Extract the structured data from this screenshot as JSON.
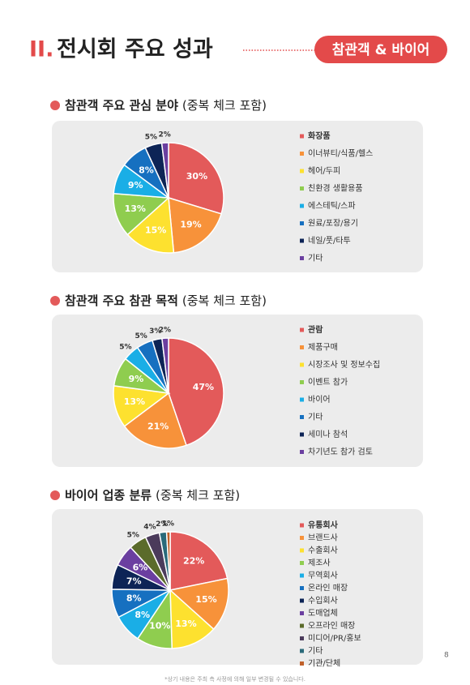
{
  "header": {
    "roman": "II.",
    "title": "전시회 주요 성과",
    "badge": "참관객 & 바이어"
  },
  "chart_data": [
    {
      "type": "pie",
      "title": "참관객 주요 관심 분야",
      "subtitle": "(중복 체크 포함)",
      "categories": [
        "화장품",
        "이너뷰티/식품/헬스",
        "헤어/두피",
        "친환경 생활용품",
        "에스테틱/스파",
        "원료/포장/용기",
        "네일/풋/타투",
        "기타"
      ],
      "values": [
        30,
        19,
        15,
        13,
        9,
        8,
        5,
        2
      ],
      "value_labels": [
        "30%",
        "19%",
        "15%",
        "13%",
        "9%",
        "8%",
        "5%",
        "2%"
      ],
      "colors": [
        "#e35a5a",
        "#f7923a",
        "#fde12f",
        "#8fcd4f",
        "#1aaee6",
        "#1670c0",
        "#0d2456",
        "#6b3fa0"
      ]
    },
    {
      "type": "pie",
      "title": "참관객 주요 참관 목적",
      "subtitle": "(중복 체크 포함)",
      "categories": [
        "관람",
        "제품구매",
        "시장조사 및 정보수집",
        "이벤트 참가",
        "바이어",
        "기타",
        "세미나 참석",
        "차기년도 참가 검토"
      ],
      "values": [
        47,
        21,
        13,
        9,
        5,
        5,
        3,
        2
      ],
      "value_labels": [
        "47%",
        "21%",
        "13%",
        "9%",
        "5%",
        "5%",
        "3%",
        "2%"
      ],
      "colors": [
        "#e35a5a",
        "#f7923a",
        "#fde12f",
        "#8fcd4f",
        "#1aaee6",
        "#1670c0",
        "#0d2456",
        "#6b3fa0"
      ]
    },
    {
      "type": "pie",
      "title": "바이어 업종 분류",
      "subtitle": "(중복 체크 포함)",
      "categories": [
        "유통회사",
        "브랜드사",
        "수출회사",
        "제조사",
        "무역회사",
        "온라인 매장",
        "수입회사",
        "도매업체",
        "오프라인 매장",
        "미디어/PR/홍보",
        "기타",
        "기관/단체"
      ],
      "values": [
        22,
        15,
        13,
        10,
        8,
        8,
        7,
        6,
        5,
        4,
        2,
        1
      ],
      "value_labels": [
        "22%",
        "15%",
        "13%",
        "10%",
        "8%",
        "8%",
        "7%",
        "6%",
        "5%",
        "4%",
        "2%",
        "1%"
      ],
      "colors": [
        "#e35a5a",
        "#f7923a",
        "#fde12f",
        "#8fcd4f",
        "#1aaee6",
        "#1670c0",
        "#0d2456",
        "#6b3fa0",
        "#5b6b2b",
        "#4b3b5b",
        "#2a6a7a",
        "#c0602a"
      ]
    }
  ],
  "footnote": "*상기 내용은 주최 측 사정에 의해 일부 변경될 수 있습니다.",
  "page_number": 8
}
